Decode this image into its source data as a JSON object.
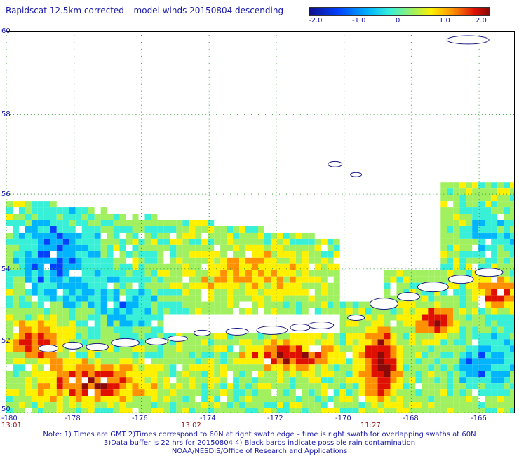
{
  "title": "Rapidscat 12.5km corrected – model winds 20150804 descending",
  "colorbar": {
    "ticks": [
      "-2.0",
      "-1.0",
      "0",
      "1.0",
      "2.0"
    ],
    "colors": [
      "#10108a",
      "#0040ff",
      "#00b4ff",
      "#38f0d8",
      "#a0f060",
      "#fff000",
      "#ff9000",
      "#e01000",
      "#8a0a0a"
    ]
  },
  "map": {
    "lat_labels": [
      "60",
      "58",
      "56",
      "54",
      "52",
      "50"
    ],
    "lon_labels": [
      "-180",
      "-178",
      "-176",
      "-174",
      "-172",
      "-170",
      "-168",
      "-166"
    ],
    "time_labels": [
      "13:01",
      "13:02",
      "11:27"
    ],
    "lat_range": [
      50,
      60
    ],
    "lon_range": [
      -180,
      -165.2
    ],
    "grid": true
  },
  "notes": [
    "Note: 1) Times are GMT 2)Times correspond to 60N at right swath edge – time is right swath for overlapping swaths at 60N",
    "3)Data buffer is 22 hrs for 20150804 4) Black barbs indicate possible rain contamination",
    "NOAA/NESDIS/Office of Research and Applications"
  ]
}
